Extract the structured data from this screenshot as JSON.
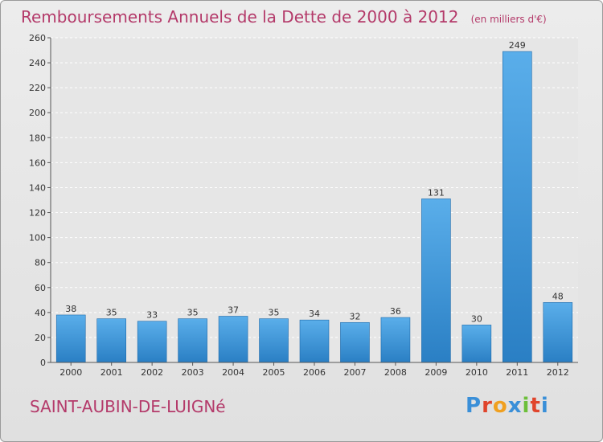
{
  "header": {
    "title": "Remboursements Annuels de la Dette de 2000 à 2012",
    "subtitle": "(en milliers d'€)"
  },
  "footer": {
    "commune": "SAINT-AUBIN-DE-LUIGNé",
    "logo_text": "Proxiti"
  },
  "colors": {
    "title": "#b43a6a",
    "bar_light": "#5aaeea",
    "bar_dark": "#2a7fc4",
    "logo_letters": [
      "#3a8fd8",
      "#e0452c",
      "#f0a020",
      "#3a8fd8",
      "#6cbf3a",
      "#e0452c",
      "#3a8fd8"
    ]
  },
  "chart_data": {
    "type": "bar",
    "categories": [
      "2000",
      "2001",
      "2002",
      "2003",
      "2004",
      "2005",
      "2006",
      "2007",
      "2008",
      "2009",
      "2010",
      "2011",
      "2012"
    ],
    "values": [
      38,
      35,
      33,
      35,
      37,
      35,
      34,
      32,
      36,
      131,
      30,
      249,
      48
    ],
    "title": "Remboursements Annuels de la Dette de 2000 à 2012",
    "subtitle": "(en milliers d'€)",
    "xlabel": "",
    "ylabel": "",
    "ylim": [
      0,
      260
    ],
    "yticks": [
      0,
      20,
      40,
      60,
      80,
      100,
      120,
      140,
      160,
      180,
      200,
      220,
      240,
      260
    ],
    "grid": true,
    "data_labels": true
  }
}
